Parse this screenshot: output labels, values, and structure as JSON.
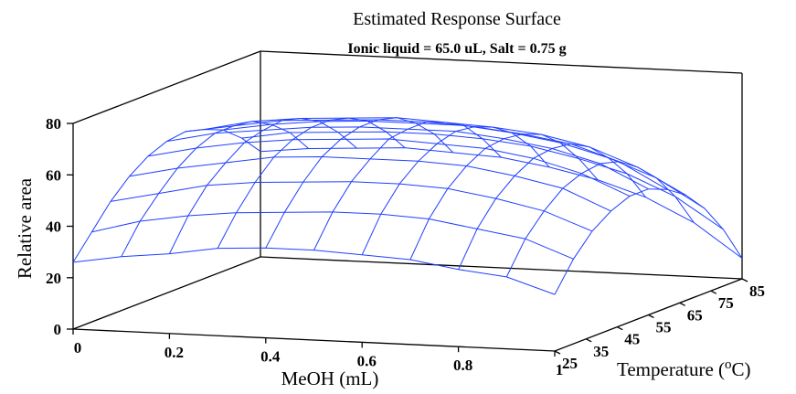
{
  "chart_data": {
    "type": "surface",
    "title": "Estimated Response Surface",
    "subtitle": "Ionic liquid = 65.0 uL, Salt = 0.75 g",
    "xlabel": "MeOH (mL)",
    "ylabel": "Temperature (",
    "ylabel_sup": "o",
    "ylabel_end": "C)",
    "zlabel": "Relative area",
    "x_ticks": [
      "0",
      "0.2",
      "0.4",
      "0.6",
      "0.8",
      "1"
    ],
    "y_ticks": [
      "25",
      "35",
      "45",
      "55",
      "65",
      "75",
      "85"
    ],
    "z_ticks": [
      "0",
      "20",
      "40",
      "60",
      "80"
    ],
    "xlim": [
      0,
      1
    ],
    "ylim": [
      25,
      85
    ],
    "zlim": [
      0,
      80
    ],
    "x": [
      0,
      0.1,
      0.2,
      0.3,
      0.4,
      0.5,
      0.6,
      0.7,
      0.8,
      0.9,
      1.0
    ],
    "y": [
      25,
      31,
      37,
      43,
      49,
      55,
      61,
      67,
      73,
      79,
      85
    ],
    "z": [
      [
        26,
        29,
        31,
        34,
        35,
        35,
        34,
        33,
        30,
        28,
        22
      ],
      [
        35,
        40,
        43,
        45,
        46,
        47,
        47,
        46,
        43,
        40,
        33
      ],
      [
        44,
        48,
        52,
        54,
        55,
        56,
        56,
        55,
        52,
        48,
        41
      ],
      [
        51,
        55,
        58,
        61,
        62,
        62,
        62,
        61,
        58,
        54,
        46
      ],
      [
        56,
        60,
        63,
        65,
        66,
        67,
        66,
        65,
        62,
        57,
        49
      ],
      [
        59,
        63,
        65,
        67,
        68,
        68,
        68,
        66,
        63,
        58,
        49
      ],
      [
        60,
        63,
        66,
        67,
        68,
        68,
        67,
        65,
        62,
        56,
        46
      ],
      [
        58,
        62,
        64,
        65,
        66,
        65,
        64,
        62,
        58,
        51,
        41
      ],
      [
        55,
        58,
        60,
        61,
        61,
        61,
        59,
        56,
        51,
        44,
        33
      ],
      [
        49,
        52,
        53,
        54,
        54,
        53,
        51,
        47,
        42,
        34,
        22
      ],
      [
        41,
        43,
        44,
        45,
        44,
        43,
        40,
        36,
        30,
        21,
        8
      ]
    ],
    "surface_color": "#1f3fff",
    "box_color": "#000000"
  }
}
